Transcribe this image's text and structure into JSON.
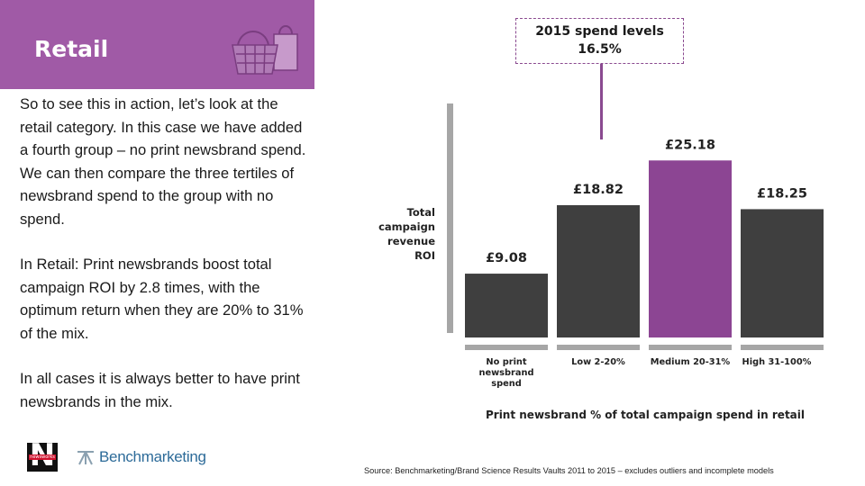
{
  "header": {
    "title": "Retail"
  },
  "icons": {
    "header": "shopping-basket-and-bag-icon"
  },
  "colors": {
    "accent": "#a05aa6",
    "bar_dark": "#3f3f3f",
    "bar_highlight": "#8c4593",
    "baseline": "#a6a6a6"
  },
  "body": {
    "paragraphs": [
      "So to see this in action, let’s look at the retail category. In this case we have added a fourth group – no print newsbrand spend.  We can then compare the three tertiles of newsbrand spend to the group with no spend.",
      "In Retail: Print newsbrands boost total campaign ROI by 2.8 times, with the optimum return when they are 20% to 31% of the mix.",
      "In all cases it is always better to have print newsbrands in the mix."
    ]
  },
  "logos": {
    "newsworks_tag": "newsworks",
    "benchmarking": "Benchmarketing"
  },
  "callout": {
    "line1": "2015 spend levels",
    "line2": "16.5%"
  },
  "chart_data": {
    "type": "bar",
    "categories": [
      "No print newsbrand spend",
      "Low 2-20%",
      "Medium 20-31%",
      "High 31-100%"
    ],
    "category_lines": [
      [
        "No print",
        "newsbrand",
        "spend"
      ],
      [
        "Low 2-20%"
      ],
      [
        "Medium 20-31%"
      ],
      [
        "High 31-100%"
      ]
    ],
    "values": [
      9.08,
      18.82,
      25.18,
      18.25
    ],
    "value_labels": [
      "£9.08",
      "£18.82",
      "£25.18",
      "£18.25"
    ],
    "highlight_index": 2,
    "ylabel_lines": [
      "Total",
      "campaign",
      "revenue",
      "ROI"
    ],
    "xlabel": "Print newsbrand % of total campaign spend in retail",
    "ylim": [
      0,
      32
    ],
    "grid": false,
    "legend": "none"
  },
  "source": "Source: Benchmarketing/Brand Science Results Vaults 2011 to 2015 – excludes outliers and incomplete models"
}
